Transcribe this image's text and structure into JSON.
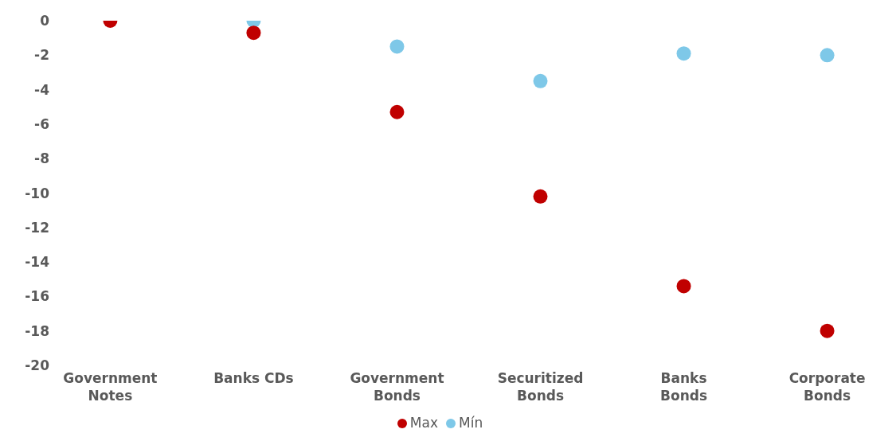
{
  "chart_data": {
    "type": "scatter",
    "categories": [
      "Government Notes",
      "Banks CDs",
      "Government Bonds",
      "Securitized Bonds",
      "Banks Bonds",
      "Corporate Bonds"
    ],
    "series": [
      {
        "name": "Mín",
        "color": "#7ec8e8",
        "values": [
          null,
          0,
          -1.5,
          -3.5,
          -1.9,
          -2.0
        ]
      },
      {
        "name": "Max",
        "color": "#c00000",
        "values": [
          0,
          -0.7,
          -5.3,
          -10.2,
          -15.4,
          -18.0
        ]
      }
    ],
    "ylim": [
      -20,
      0
    ],
    "yticks": [
      -20,
      -18,
      -16,
      -14,
      -12,
      -10,
      -8,
      -6,
      -4,
      -2,
      0
    ],
    "grid": false,
    "legend": "bottom",
    "marker": "circle"
  }
}
